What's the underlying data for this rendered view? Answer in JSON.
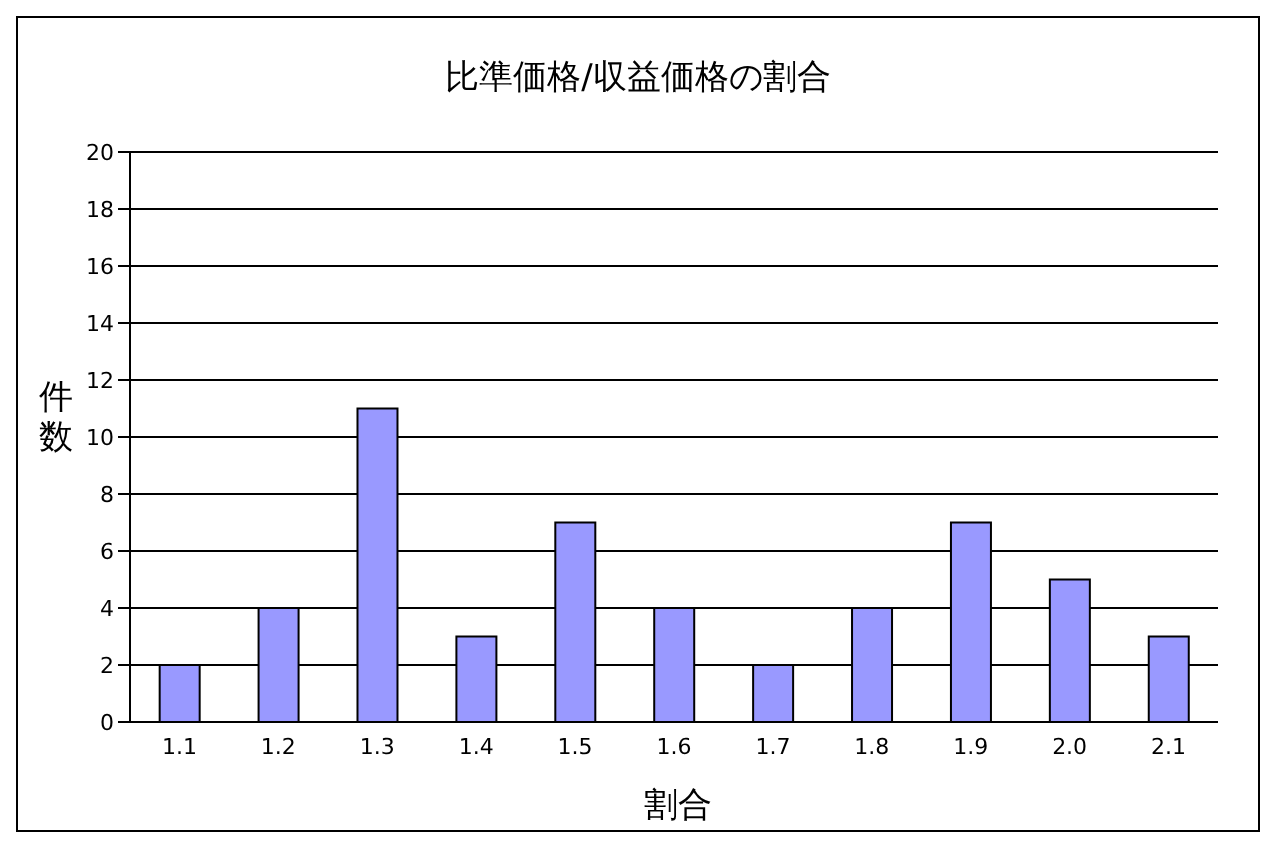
{
  "chart_data": {
    "type": "bar",
    "title": "比準価格/収益価格の割合",
    "xlabel": "割合",
    "ylabel": "件数",
    "categories": [
      "1.1",
      "1.2",
      "1.3",
      "1.4",
      "1.5",
      "1.6",
      "1.7",
      "1.8",
      "1.9",
      "2.0",
      "2.1"
    ],
    "values": [
      2,
      4,
      11,
      3,
      7,
      4,
      2,
      4,
      7,
      5,
      3
    ],
    "color": "#9999ff",
    "ylim": [
      0,
      20
    ],
    "yticks": [
      0,
      2,
      4,
      6,
      8,
      10,
      12,
      14,
      16,
      18,
      20
    ],
    "grid": "y",
    "legend": false
  }
}
